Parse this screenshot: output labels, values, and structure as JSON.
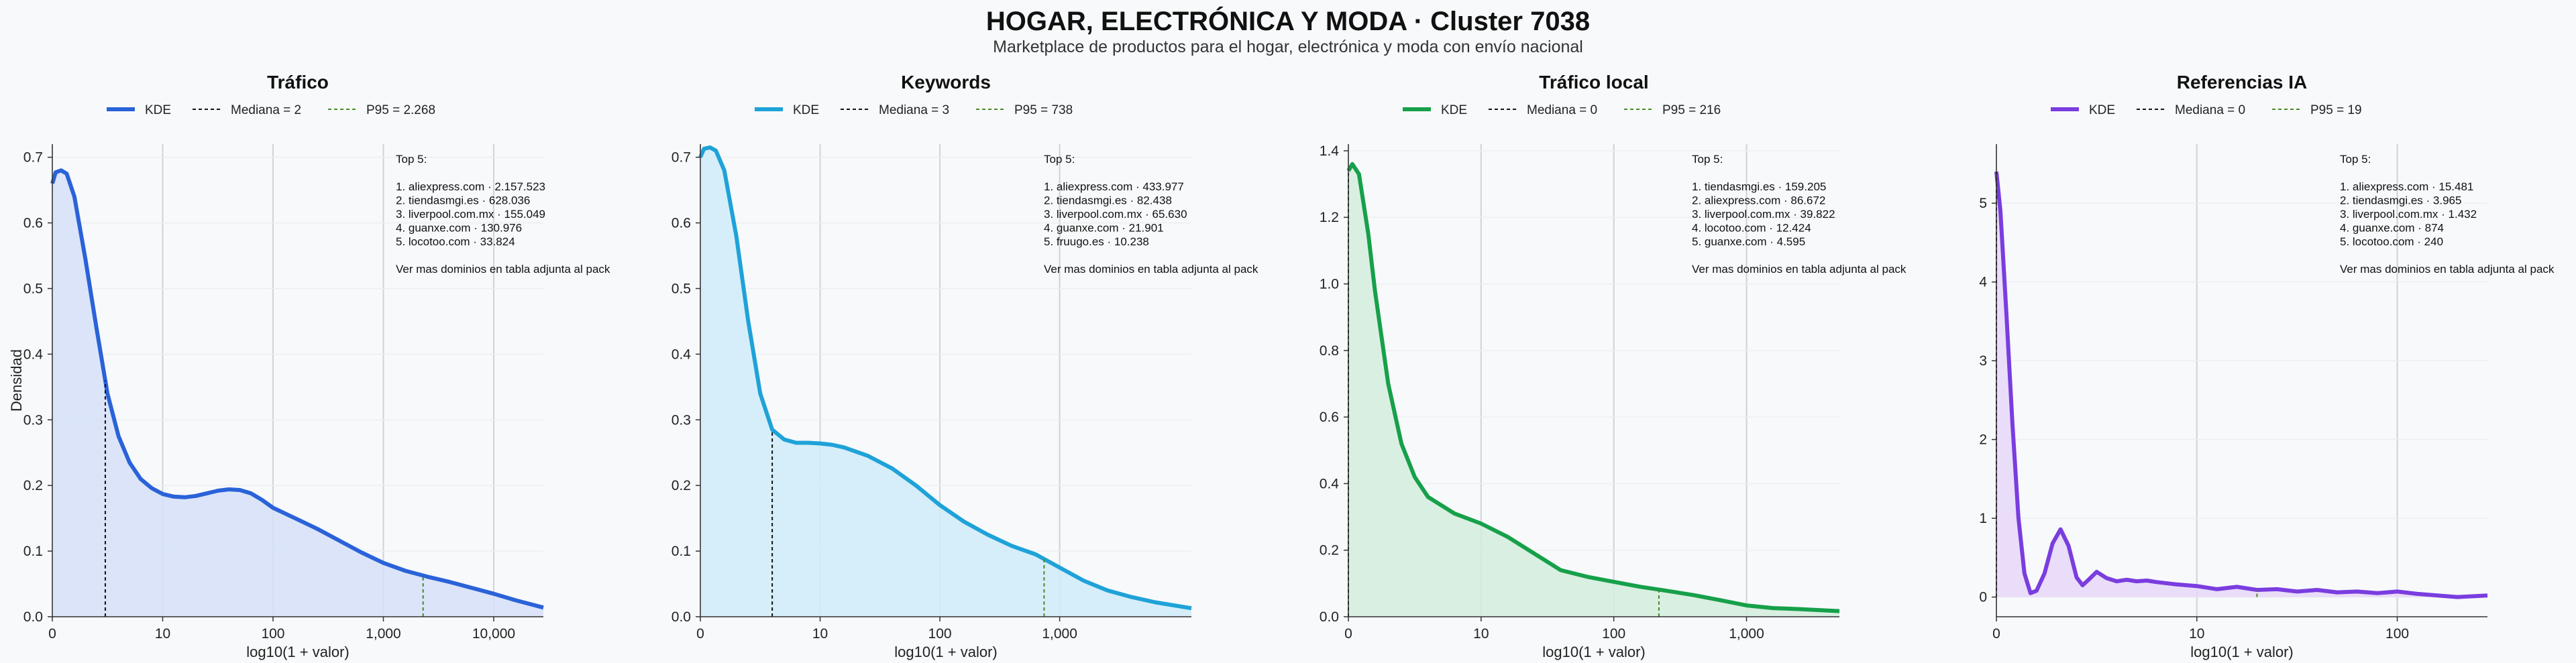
{
  "header": {
    "title": "HOGAR, ELECTRÓNICA Y MODA · Cluster 7038",
    "subtitle": "Marketplace de productos para el hogar, electrónica y moda con envío nacional"
  },
  "chart_data": [
    {
      "type": "area",
      "title": "Tráfico",
      "xlabel": "log10(1 + valor)",
      "ylabel": "Densidad",
      "color": "#2a62d8",
      "fill": "#d6e0f8",
      "xlim": [
        0,
        4.45
      ],
      "ylim": [
        0,
        0.72
      ],
      "xticks": [
        0,
        1,
        2,
        3,
        4
      ],
      "xticklabels": [
        "0",
        "10",
        "100",
        "1,000",
        "10,000"
      ],
      "yticks": [
        0,
        0.1,
        0.2,
        0.3,
        0.4,
        0.5,
        0.6,
        0.7
      ],
      "yticklabels": [
        "0.0",
        "0.1",
        "0.2",
        "0.3",
        "0.4",
        "0.5",
        "0.6",
        "0.7"
      ],
      "legend": [
        "KDE",
        "Mediana = 2",
        "P95 = 2.268"
      ],
      "median_x": 0.48,
      "p95_x": 3.36,
      "kde": {
        "x": [
          0,
          0.03,
          0.08,
          0.13,
          0.2,
          0.3,
          0.4,
          0.5,
          0.6,
          0.7,
          0.8,
          0.9,
          1.0,
          1.1,
          1.2,
          1.3,
          1.4,
          1.5,
          1.6,
          1.7,
          1.8,
          1.9,
          2.0,
          2.2,
          2.4,
          2.6,
          2.8,
          3.0,
          3.2,
          3.4,
          3.6,
          3.8,
          4.0,
          4.2,
          4.45
        ],
        "y": [
          0.66,
          0.677,
          0.68,
          0.675,
          0.64,
          0.545,
          0.44,
          0.34,
          0.275,
          0.235,
          0.21,
          0.196,
          0.187,
          0.183,
          0.182,
          0.184,
          0.188,
          0.192,
          0.194,
          0.193,
          0.188,
          0.178,
          0.166,
          0.15,
          0.134,
          0.116,
          0.098,
          0.082,
          0.07,
          0.061,
          0.053,
          0.044,
          0.035,
          0.025,
          0.014
        ]
      },
      "annotation": [
        "Top 5:",
        "",
        "1. aliexpress.com · 2.157.523",
        "2. tiendasmgi.es · 628.036",
        "3. liverpool.com.mx · 155.049",
        "4. guanxe.com · 130.976",
        "5. locotoo.com · 33.824",
        "",
        "Ver mas dominios en tabla adjunta al pack"
      ]
    },
    {
      "type": "area",
      "title": "Keywords",
      "xlabel": "log10(1 + valor)",
      "ylabel": "",
      "color": "#1fa2d8",
      "fill": "#d0ecf8",
      "xlim": [
        0,
        4.1
      ],
      "ylim": [
        0,
        0.72
      ],
      "xticks": [
        0,
        1,
        2,
        3
      ],
      "xticklabels": [
        "0",
        "10",
        "100",
        "1,000"
      ],
      "yticks": [
        0,
        0.1,
        0.2,
        0.3,
        0.4,
        0.5,
        0.6,
        0.7
      ],
      "yticklabels": [
        "0.0",
        "0.1",
        "0.2",
        "0.3",
        "0.4",
        "0.5",
        "0.6",
        "0.7"
      ],
      "legend": [
        "KDE",
        "Mediana = 3",
        "P95 = 738"
      ],
      "median_x": 0.6,
      "p95_x": 2.87,
      "kde": {
        "x": [
          0,
          0.03,
          0.08,
          0.13,
          0.2,
          0.3,
          0.4,
          0.5,
          0.6,
          0.7,
          0.8,
          0.9,
          1.0,
          1.1,
          1.2,
          1.4,
          1.6,
          1.8,
          2.0,
          2.2,
          2.4,
          2.6,
          2.8,
          3.0,
          3.2,
          3.4,
          3.6,
          3.8,
          4.1
        ],
        "y": [
          0.7,
          0.713,
          0.715,
          0.71,
          0.68,
          0.58,
          0.45,
          0.34,
          0.285,
          0.27,
          0.265,
          0.265,
          0.264,
          0.262,
          0.258,
          0.245,
          0.226,
          0.2,
          0.17,
          0.145,
          0.125,
          0.108,
          0.095,
          0.075,
          0.055,
          0.04,
          0.03,
          0.022,
          0.013
        ]
      },
      "annotation": [
        "Top 5:",
        "",
        "1. aliexpress.com · 433.977",
        "2. tiendasmgi.es · 82.438",
        "3. liverpool.com.mx · 65.630",
        "4. guanxe.com · 21.901",
        "5. fruugo.es · 10.238",
        "",
        "Ver mas dominios en tabla adjunta al pack"
      ]
    },
    {
      "type": "area",
      "title": "Tráfico local",
      "xlabel": "log10(1 + valor)",
      "ylabel": "",
      "color": "#16a04a",
      "fill": "#d3eddc",
      "xlim": [
        0,
        3.7
      ],
      "ylim": [
        0,
        1.42
      ],
      "xticks": [
        0,
        1,
        2,
        3
      ],
      "xticklabels": [
        "0",
        "10",
        "100",
        "1,000"
      ],
      "yticks": [
        0,
        0.2,
        0.4,
        0.6,
        0.8,
        1.0,
        1.2,
        1.4
      ],
      "yticklabels": [
        "0.0",
        "0.2",
        "0.4",
        "0.6",
        "0.8",
        "1.0",
        "1.2",
        "1.4"
      ],
      "legend": [
        "KDE",
        "Mediana = 0",
        "P95 = 216"
      ],
      "median_x": 0,
      "p95_x": 2.34,
      "kde": {
        "x": [
          0,
          0.03,
          0.08,
          0.15,
          0.2,
          0.3,
          0.4,
          0.5,
          0.6,
          0.8,
          1.0,
          1.2,
          1.4,
          1.6,
          1.8,
          2.0,
          2.2,
          2.4,
          2.6,
          2.8,
          3.0,
          3.2,
          3.4,
          3.7
        ],
        "y": [
          1.34,
          1.36,
          1.33,
          1.15,
          0.98,
          0.7,
          0.52,
          0.42,
          0.36,
          0.31,
          0.28,
          0.24,
          0.19,
          0.14,
          0.12,
          0.105,
          0.09,
          0.078,
          0.065,
          0.05,
          0.034,
          0.026,
          0.023,
          0.017
        ]
      },
      "annotation": [
        "Top 5:",
        "",
        "1. tiendasmgi.es · 159.205",
        "2. aliexpress.com · 86.672",
        "3. liverpool.com.mx · 39.822",
        "4. locotoo.com · 12.424",
        "5. guanxe.com · 4.595",
        "",
        "Ver mas dominios en tabla adjunta al pack"
      ]
    },
    {
      "type": "area",
      "title": "Referencias IA",
      "xlabel": "log10(1 + valor)",
      "ylabel": "",
      "color": "#7a3ddf",
      "fill": "#e6d8f8",
      "xlim": [
        0,
        2.45
      ],
      "ylim": [
        -0.25,
        5.75
      ],
      "xticks": [
        0,
        1,
        2
      ],
      "xticklabels": [
        "0",
        "10",
        "100"
      ],
      "yticks": [
        0,
        1,
        2,
        3,
        4,
        5
      ],
      "yticklabels": [
        "0",
        "1",
        "2",
        "3",
        "4",
        "5"
      ],
      "legend": [
        "KDE",
        "Mediana = 0",
        "P95 = 19"
      ],
      "median_x": 0,
      "p95_x": 1.3,
      "kde": {
        "x": [
          0,
          0.02,
          0.05,
          0.08,
          0.11,
          0.14,
          0.17,
          0.2,
          0.24,
          0.28,
          0.32,
          0.36,
          0.4,
          0.43,
          0.46,
          0.5,
          0.55,
          0.6,
          0.65,
          0.7,
          0.75,
          0.8,
          0.9,
          1.0,
          1.1,
          1.2,
          1.3,
          1.4,
          1.5,
          1.6,
          1.7,
          1.8,
          1.9,
          2.0,
          2.1,
          2.2,
          2.3,
          2.45
        ],
        "y": [
          5.4,
          4.9,
          3.6,
          2.2,
          1.0,
          0.3,
          0.05,
          0.08,
          0.3,
          0.68,
          0.86,
          0.65,
          0.25,
          0.15,
          0.22,
          0.32,
          0.24,
          0.2,
          0.22,
          0.2,
          0.21,
          0.19,
          0.16,
          0.14,
          0.1,
          0.13,
          0.09,
          0.1,
          0.07,
          0.09,
          0.06,
          0.07,
          0.05,
          0.07,
          0.04,
          0.02,
          0.0,
          0.02
        ]
      },
      "annotation": [
        "Top 5:",
        "",
        "1. aliexpress.com · 15.481",
        "2. tiendasmgi.es · 3.965",
        "3. liverpool.com.mx · 1.432",
        "4. guanxe.com · 874",
        "5. locotoo.com · 240",
        "",
        "Ver mas dominios en tabla adjunta al pack"
      ]
    }
  ]
}
